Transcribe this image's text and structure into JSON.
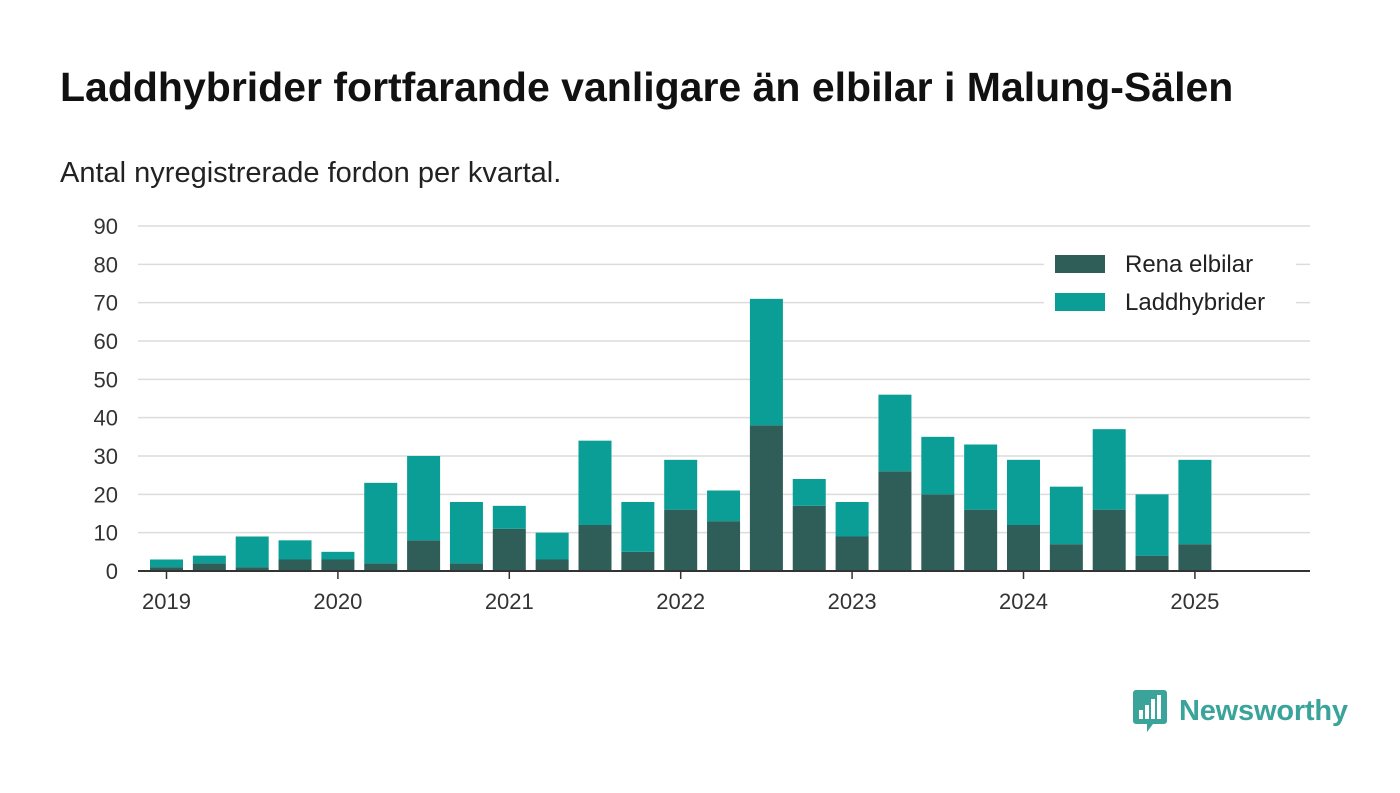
{
  "title": "Laddhybrider fortfarande vanligare än elbilar i Malung-Sälen",
  "subtitle": "Antal nyregistrerade fordon per kvartal.",
  "brand": {
    "name": "Newsworthy",
    "color": "#3aa39a",
    "icon": "bar-chart-icon"
  },
  "chart_data": {
    "type": "bar",
    "stacked": true,
    "x_tick_labels": [
      "2019",
      "2020",
      "2021",
      "2022",
      "2023",
      "2024",
      "2025"
    ],
    "categories": [
      "2019 Q1",
      "2019 Q2",
      "2019 Q3",
      "2019 Q4",
      "2020 Q1",
      "2020 Q2",
      "2020 Q3",
      "2020 Q4",
      "2021 Q1",
      "2021 Q2",
      "2021 Q3",
      "2021 Q4",
      "2022 Q1",
      "2022 Q2",
      "2022 Q3",
      "2022 Q4",
      "2023 Q1",
      "2023 Q2",
      "2023 Q3",
      "2023 Q4",
      "2024 Q1",
      "2024 Q2",
      "2024 Q3",
      "2024 Q4",
      "2025 Q1",
      "2025 Q2"
    ],
    "series": [
      {
        "name": "Rena elbilar",
        "color": "#2f5d58",
        "values": [
          1,
          2,
          1,
          3,
          3,
          2,
          8,
          2,
          11,
          3,
          12,
          5,
          16,
          13,
          38,
          17,
          9,
          26,
          20,
          16,
          12,
          7,
          16,
          4,
          7,
          null
        ]
      },
      {
        "name": "Laddhybrider",
        "color": "#0a9e96",
        "values": [
          2,
          2,
          8,
          5,
          2,
          21,
          22,
          16,
          6,
          7,
          22,
          13,
          13,
          8,
          33,
          7,
          9,
          20,
          15,
          17,
          17,
          15,
          21,
          16,
          22,
          null
        ]
      }
    ],
    "ylim": [
      0,
      90
    ],
    "yticks": [
      0,
      10,
      20,
      30,
      40,
      50,
      60,
      70,
      80,
      90
    ],
    "xlabel": "",
    "ylabel": "",
    "grid": true,
    "legend_position": "top-right"
  }
}
